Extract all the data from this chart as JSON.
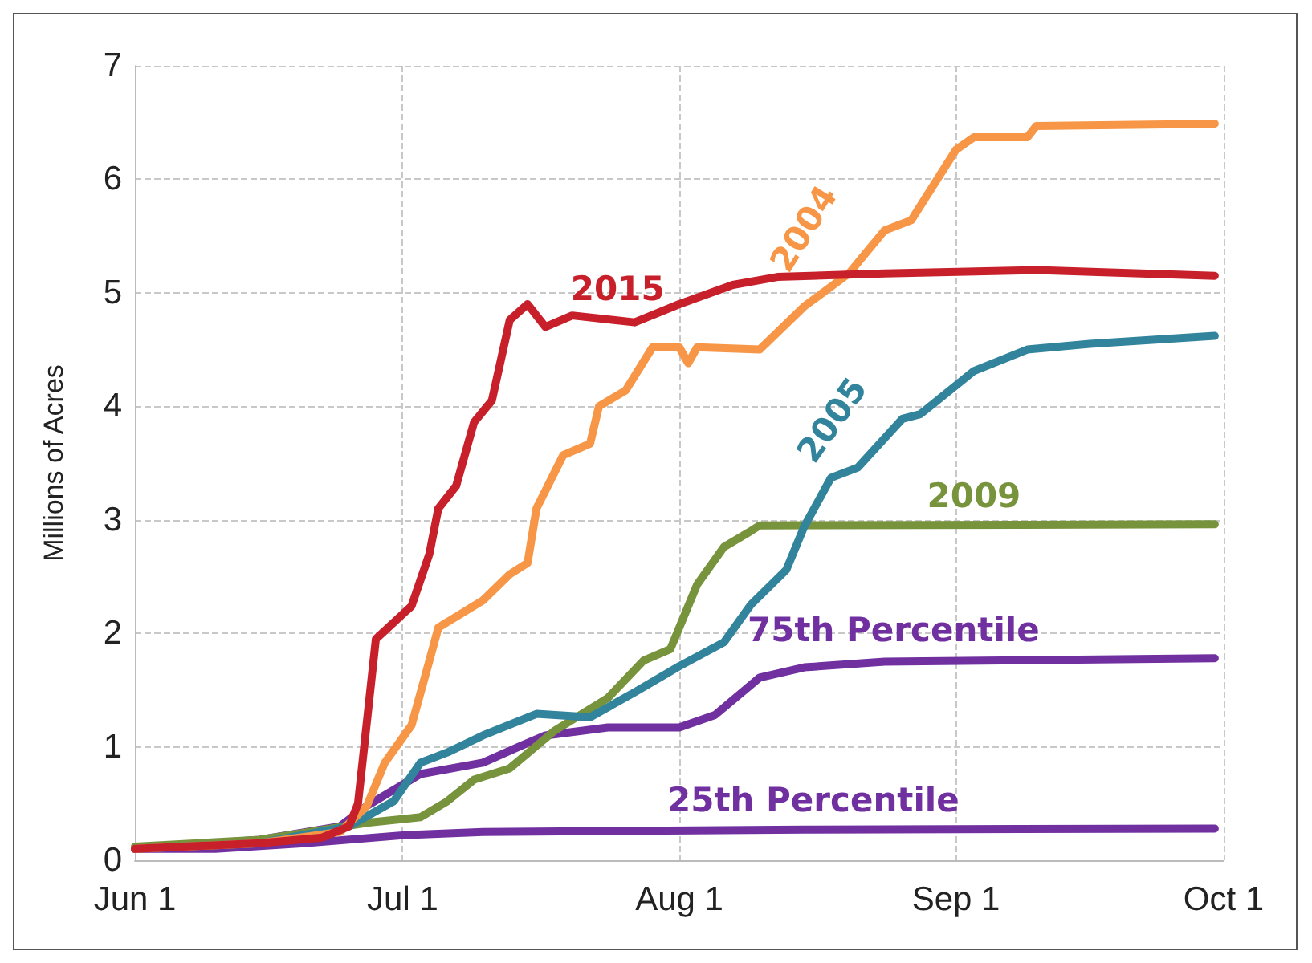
{
  "chart_data": {
    "type": "line",
    "ylabel": "Millions of Acres",
    "xlim": [
      "--06-01",
      "--10-01"
    ],
    "xticks": [
      {
        "value": "--06-01",
        "label": "Jun 1"
      },
      {
        "value": "--07-01",
        "label": "Jul 1"
      },
      {
        "value": "--08-01",
        "label": "Aug 1"
      },
      {
        "value": "--09-01",
        "label": "Sep 1"
      },
      {
        "value": "--10-01",
        "label": "Oct 1"
      }
    ],
    "ylim": [
      0,
      7
    ],
    "yticks": [
      0,
      1,
      2,
      3,
      4,
      5,
      6,
      7
    ],
    "grid": true,
    "marker": "none",
    "line_style": "solid",
    "series": [
      {
        "name": "2015",
        "color": "#c8202a",
        "x": [
          "--06-01",
          "--06-15",
          "--06-22",
          "--06-25",
          "--06-26",
          "--06-28",
          "--07-02",
          "--07-04",
          "--07-05",
          "--07-07",
          "--07-09",
          "--07-11",
          "--07-13",
          "--07-15",
          "--07-17",
          "--07-20",
          "--07-27",
          "--08-01",
          "--08-07",
          "--08-12",
          "--08-24",
          "--09-10",
          "--09-30"
        ],
        "values": [
          0.1,
          0.15,
          0.2,
          0.3,
          0.5,
          1.95,
          2.24,
          2.7,
          3.1,
          3.3,
          3.86,
          4.05,
          4.76,
          4.9,
          4.7,
          4.8,
          4.74,
          4.9,
          5.07,
          5.14,
          5.17,
          5.2,
          5.15
        ]
      },
      {
        "name": "2004",
        "color": "#f79646",
        "x": [
          "--06-01",
          "--06-15",
          "--06-24",
          "--06-27",
          "--06-29",
          "--07-02",
          "--07-04",
          "--07-05",
          "--07-10",
          "--07-13",
          "--07-15",
          "--07-16",
          "--07-19",
          "--07-22",
          "--07-23",
          "--07-26",
          "--07-29",
          "--08-01",
          "--08-02",
          "--08-03",
          "--08-10",
          "--08-15",
          "--08-20",
          "--08-24",
          "--08-27",
          "--09-01",
          "--09-03",
          "--09-09",
          "--09-10",
          "--09-30"
        ],
        "values": [
          0.1,
          0.15,
          0.25,
          0.48,
          0.86,
          1.19,
          1.76,
          2.05,
          2.29,
          2.52,
          2.62,
          3.1,
          3.57,
          3.67,
          4.0,
          4.14,
          4.52,
          4.52,
          4.38,
          4.52,
          4.5,
          4.88,
          5.17,
          5.55,
          5.64,
          6.26,
          6.37,
          6.37,
          6.47,
          6.49
        ]
      },
      {
        "name": "2005",
        "color": "#31849b",
        "x": [
          "--06-01",
          "--06-15",
          "--06-25",
          "--06-30",
          "--07-03",
          "--07-06",
          "--07-10",
          "--07-16",
          "--07-22",
          "--07-27",
          "--08-01",
          "--08-06",
          "--08-09",
          "--08-13",
          "--08-15",
          "--08-18",
          "--08-21",
          "--08-26",
          "--08-28",
          "--09-03",
          "--09-09",
          "--09-16",
          "--09-30"
        ],
        "values": [
          0.1,
          0.15,
          0.3,
          0.52,
          0.86,
          0.95,
          1.1,
          1.29,
          1.26,
          1.48,
          1.71,
          1.92,
          2.25,
          2.56,
          2.94,
          3.37,
          3.46,
          3.89,
          3.93,
          4.31,
          4.5,
          4.55,
          4.62
        ]
      },
      {
        "name": "2009",
        "color": "#77933c",
        "x": [
          "--06-01",
          "--06-15",
          "--06-27",
          "--07-03",
          "--07-06",
          "--07-09",
          "--07-13",
          "--07-18",
          "--07-24",
          "--07-28",
          "--07-31",
          "--08-03",
          "--08-06",
          "--08-09",
          "--08-10",
          "--09-30"
        ],
        "values": [
          0.12,
          0.18,
          0.33,
          0.38,
          0.52,
          0.71,
          0.81,
          1.14,
          1.43,
          1.76,
          1.86,
          2.43,
          2.76,
          2.9,
          2.95,
          2.96
        ]
      },
      {
        "name": "75th Percentile",
        "color": "#7030a0",
        "x": [
          "--06-01",
          "--06-15",
          "--06-24",
          "--06-27",
          "--06-30",
          "--07-03",
          "--07-10",
          "--07-14",
          "--07-17",
          "--07-24",
          "--08-01",
          "--08-05",
          "--08-10",
          "--08-15",
          "--08-24",
          "--09-30"
        ],
        "values": [
          0.1,
          0.18,
          0.3,
          0.48,
          0.62,
          0.76,
          0.86,
          1.0,
          1.1,
          1.17,
          1.17,
          1.28,
          1.61,
          1.7,
          1.75,
          1.78
        ]
      },
      {
        "name": "25th Percentile",
        "color": "#7030a0",
        "x": [
          "--06-01",
          "--06-10",
          "--06-20",
          "--07-01",
          "--07-10",
          "--08-15",
          "--09-30"
        ],
        "values": [
          0.1,
          0.1,
          0.15,
          0.22,
          0.25,
          0.27,
          0.28
        ]
      }
    ]
  }
}
